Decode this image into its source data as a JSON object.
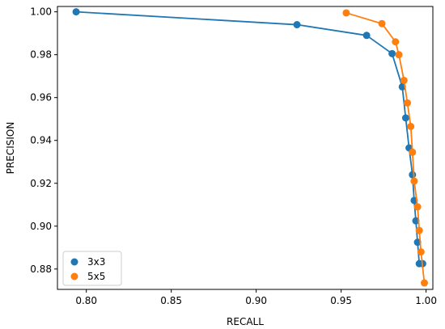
{
  "chart_data": {
    "type": "line",
    "title": "",
    "xlabel": "RECALL",
    "ylabel": "PRECISION",
    "xlim": [
      0.783,
      1.004
    ],
    "ylim": [
      0.8705,
      1.0025
    ],
    "xticks": [
      0.8,
      0.85,
      0.9,
      0.95,
      1.0
    ],
    "xtick_labels": [
      "0.80",
      "0.85",
      "0.90",
      "0.95",
      "1.00"
    ],
    "yticks": [
      0.88,
      0.9,
      0.92,
      0.94,
      0.96,
      0.98,
      1.0
    ],
    "ytick_labels": [
      "0.88",
      "0.90",
      "0.92",
      "0.94",
      "0.96",
      "0.98",
      "1.00"
    ],
    "grid": false,
    "legend_position": "lower-left",
    "series": [
      {
        "name": "3x3",
        "color": "#1f77b4",
        "x": [
          0.794,
          0.924,
          0.965,
          0.98,
          0.986,
          0.988,
          0.99,
          0.992,
          0.993,
          0.994,
          0.995,
          0.996,
          0.998
        ],
        "y": [
          1.0,
          0.994,
          0.989,
          0.9805,
          0.965,
          0.9505,
          0.9365,
          0.924,
          0.912,
          0.9025,
          0.8925,
          0.8825,
          0.8825
        ]
      },
      {
        "name": "5x5",
        "color": "#ff7f0e",
        "x": [
          0.953,
          0.974,
          0.982,
          0.984,
          0.987,
          0.989,
          0.991,
          0.992,
          0.993,
          0.995,
          0.996,
          0.997,
          0.999
        ],
        "y": [
          0.9995,
          0.9945,
          0.986,
          0.98,
          0.968,
          0.9575,
          0.9465,
          0.9345,
          0.921,
          0.909,
          0.898,
          0.888,
          0.8735
        ]
      }
    ]
  }
}
